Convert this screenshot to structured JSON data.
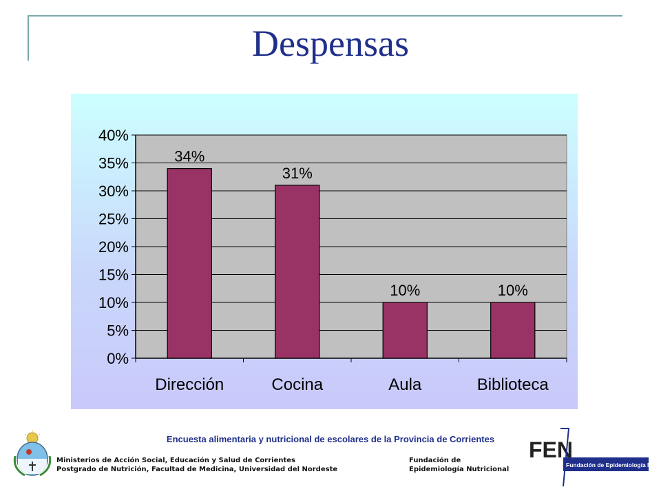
{
  "slide": {
    "title": "Despensas"
  },
  "chart_data": {
    "type": "bar",
    "title": "",
    "categories": [
      "Dirección",
      "Cocina",
      "Aula",
      "Biblioteca"
    ],
    "values": [
      34,
      31,
      10,
      10
    ],
    "data_labels": [
      "34%",
      "31%",
      "10%",
      "10%"
    ],
    "ylim": [
      0,
      40
    ],
    "yticks": [
      0,
      5,
      10,
      15,
      20,
      25,
      30,
      35,
      40
    ],
    "ytick_labels": [
      "0%",
      "5%",
      "10%",
      "15%",
      "20%",
      "25%",
      "30%",
      "35%",
      "40%"
    ],
    "xlabel": "",
    "ylabel": "",
    "grid": true,
    "bar_color": "#993366",
    "plot_background": "#c0c0c0"
  },
  "footer": {
    "survey": "Encuesta alimentaria y  nutricional de escolares de la Provincia de Corrientes",
    "left_line1": "Ministerios de Acción Social, Educación y Salud de Corrientes",
    "left_line2": "Postgrado de Nutrición, Facultad de Medicina, Universidad del Nordeste",
    "right_line1": "Fundación de",
    "right_line2": "Epidemiología Nutricional"
  },
  "logo": {
    "acronym": "FEN",
    "name": "Fundación de Epidemiología Nutricional"
  },
  "colors": {
    "title": "#1f2f8a",
    "accent_line": "#7aa9a9"
  }
}
